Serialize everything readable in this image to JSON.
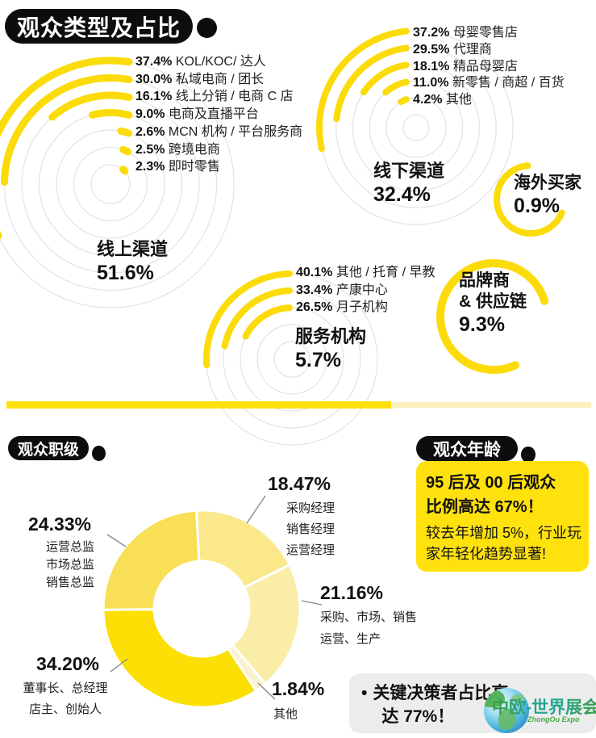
{
  "header": {
    "title": "观众类型及占比"
  },
  "sections": {
    "job_title": "观众职级",
    "age_title": "观众年龄"
  },
  "chart_data": [
    {
      "type": "radial-arc",
      "name": "online-channel",
      "center_label": "线上渠道",
      "center_value": "51.6%",
      "items": [
        {
          "value": "37.4%",
          "pct": 37.4,
          "label": "KOL/KOC/ 达人"
        },
        {
          "value": "30.0%",
          "pct": 30.0,
          "label": "私域电商 / 团长"
        },
        {
          "value": "16.1%",
          "pct": 16.1,
          "label": "线上分销 / 电商 C 店"
        },
        {
          "value": "9.0%",
          "pct": 9.0,
          "label": "电商及直播平台"
        },
        {
          "value": "2.6%",
          "pct": 2.6,
          "label": "MCN 机构 / 平台服务商"
        },
        {
          "value": "2.5%",
          "pct": 2.5,
          "label": "跨境电商"
        },
        {
          "value": "2.3%",
          "pct": 2.3,
          "label": "即时零售"
        }
      ]
    },
    {
      "type": "radial-arc",
      "name": "offline-channel",
      "center_label": "线下渠道",
      "center_value": "32.4%",
      "items": [
        {
          "value": "37.2%",
          "pct": 37.2,
          "label": "母婴零售店"
        },
        {
          "value": "29.5%",
          "pct": 29.5,
          "label": "代理商"
        },
        {
          "value": "18.1%",
          "pct": 18.1,
          "label": "精品母婴店"
        },
        {
          "value": "11.0%",
          "pct": 11.0,
          "label": "新零售 / 商超 / 百货"
        },
        {
          "value": "4.2%",
          "pct": 4.2,
          "label": "其他"
        }
      ]
    },
    {
      "type": "radial-arc",
      "name": "service-organizations",
      "center_label": "服务机构",
      "center_value": "5.7%",
      "items": [
        {
          "value": "40.1%",
          "pct": 40.1,
          "label": "其他 / 托育 / 早教"
        },
        {
          "value": "33.4%",
          "pct": 33.4,
          "label": "产康中心"
        },
        {
          "value": "26.5%",
          "pct": 26.5,
          "label": "月子机构"
        }
      ]
    },
    {
      "type": "ring",
      "name": "overseas-buyers",
      "label": "海外买家",
      "value": "0.9%",
      "pct": 0.9
    },
    {
      "type": "ring",
      "name": "brand-supply-chain",
      "label_line1": "品牌商",
      "label_line2": "& 供应链",
      "value": "9.3%",
      "pct": 9.3
    },
    {
      "type": "donut",
      "name": "audience-job-level",
      "slices": [
        {
          "value": "18.47%",
          "pct": 18.47,
          "color": "#FAE88B",
          "label_lines": [
            "采购经理",
            "销售经理",
            "运营经理"
          ]
        },
        {
          "value": "21.16%",
          "pct": 21.16,
          "color": "#F9EDA8",
          "label_lines": [
            "采购、市场、销售",
            "运营、生产"
          ]
        },
        {
          "value": "1.84%",
          "pct": 1.84,
          "color": "#FAF2CE",
          "label_lines": [
            "其他"
          ]
        },
        {
          "value": "34.20%",
          "pct": 34.2,
          "color": "#FBDF05",
          "label_lines": [
            "董事长、总经理",
            "店主、创始人"
          ]
        },
        {
          "value": "24.33%",
          "pct": 24.33,
          "color": "#F9DF55",
          "label_lines": [
            "运营总监",
            "市场总监",
            "销售总监"
          ]
        }
      ]
    }
  ],
  "age_box": {
    "headline_line1": "95 后及 00 后观众",
    "headline_line2": "比例高达 67%！",
    "sub_line1": "较去年增加 5%，行业玩",
    "sub_line2": "家年轻化趋势显著!"
  },
  "decision_note": {
    "bullet": "•",
    "line1": "关键决策者占比高",
    "line2": "达 77%！"
  },
  "logo": {
    "name_cn": "中欧-世界展会",
    "name_en": "ZhongOu Expo"
  },
  "colors": {
    "yellow_arc": "#FCDB0A",
    "yellow_bright": "#FFE00D",
    "yellow_pale": "#FAF0BF",
    "badge_black": "#0D0D0D",
    "track_gray": "#E3E3E3",
    "note_gray": "#ECECEC",
    "leader_gray": "#8A8A8A"
  }
}
